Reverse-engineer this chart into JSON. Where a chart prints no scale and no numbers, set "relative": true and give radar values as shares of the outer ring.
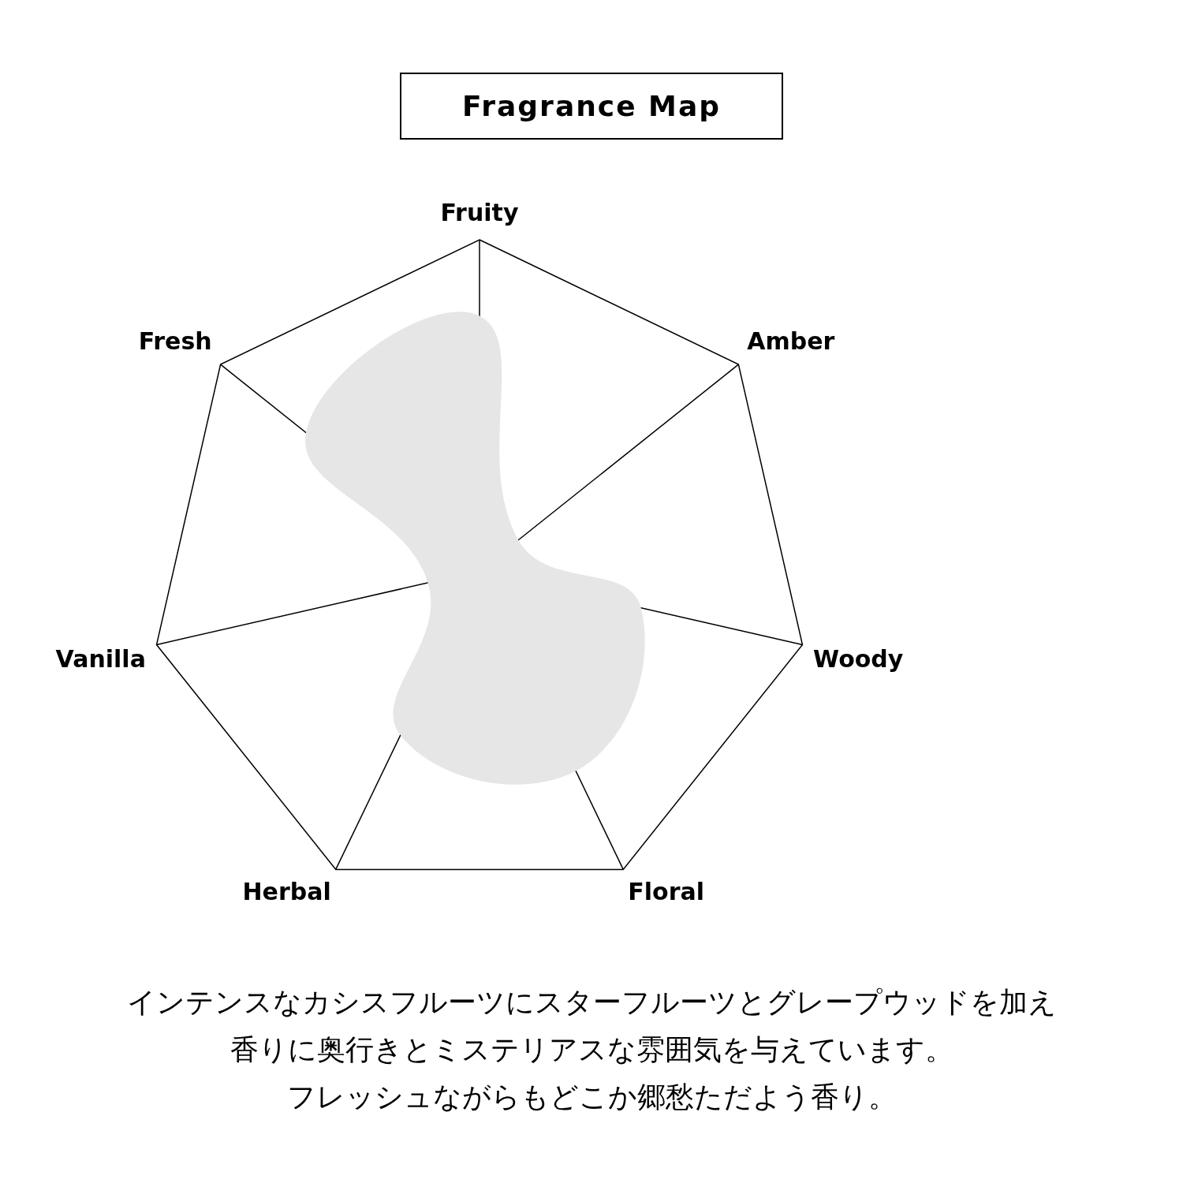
{
  "chart_data": {
    "type": "radar",
    "title": "Fragrance Map",
    "categories": [
      "Fruity",
      "Amber",
      "Woody",
      "Floral",
      "Herbal",
      "Vanilla",
      "Fresh"
    ],
    "relative": true,
    "grid": true,
    "marker": "none",
    "series": [
      {
        "color": "#e6e6e6",
        "values": [
          0.77,
          0.15,
          0.5,
          0.67,
          0.55,
          0.16,
          0.67
        ]
      }
    ],
    "annotations": [
      "インテンスなカシスフルーツにスターフルーツとグレープウッドを加え",
      "香りに奥行きとミステリアスな雰囲気を与えています。",
      "フレッシュながらもどこか郷愁ただよう香り。"
    ]
  }
}
